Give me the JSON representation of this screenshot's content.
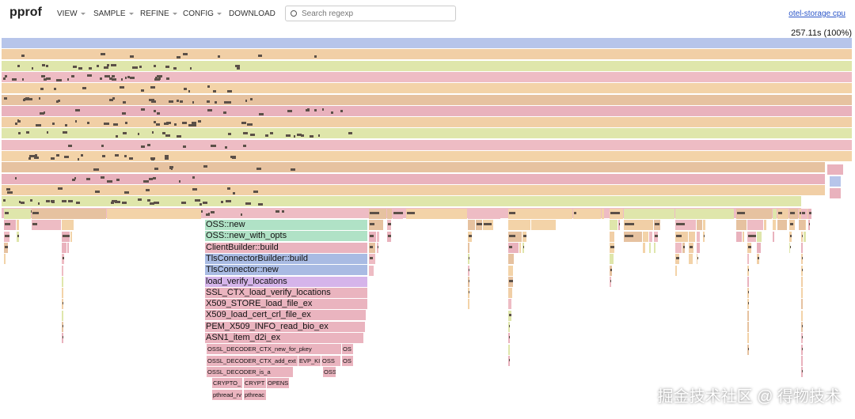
{
  "header": {
    "title": "pprof",
    "menu": [
      "VIEW",
      "SAMPLE",
      "REFINE",
      "CONFIG",
      "DOWNLOAD"
    ],
    "search_placeholder": "Search regexp",
    "profile_link": "otel-storage cpu"
  },
  "flame_graph": {
    "total": "257.11s (100%)",
    "frames": [
      "OSS::new",
      "OSS::new_with_opts",
      "ClientBuilder::build",
      "TlsConnectorBuilder::build",
      "TlsConnector::new",
      "load_verify_locations",
      "SSL_CTX_load_verify_locations",
      "X509_STORE_load_file_ex",
      "X509_load_cert_crl_file_ex",
      "PEM_X509_INFO_read_bio_ex",
      "ASN1_item_d2i_ex",
      "OSSL_DECODER_CTX_new_for_pkey",
      "OS",
      "OSSL_DECODER_CTX_add_ext",
      "EVP_KI",
      "OSS",
      "OS",
      "OSSL_DECODER_is_a",
      "OSS",
      "CRYPTO_",
      "CRYPT",
      "OPENS",
      "pthread_rv",
      "pthreac"
    ]
  },
  "watermark": "掘金技术社区 @ 得物技术"
}
